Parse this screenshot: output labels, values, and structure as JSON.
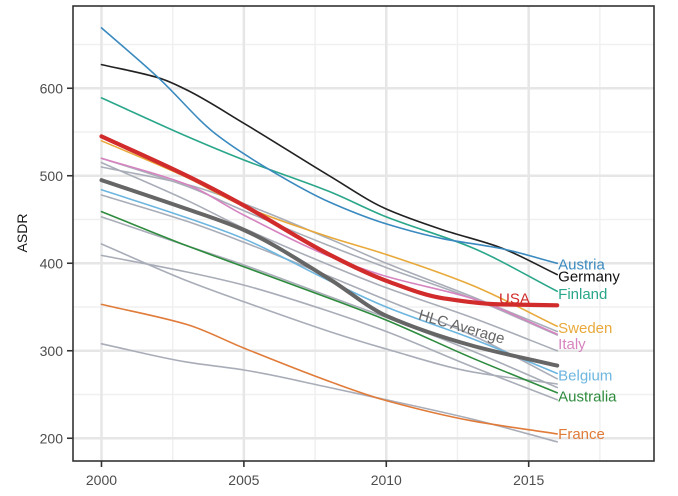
{
  "chart_data": {
    "type": "line",
    "title": "",
    "xlabel": "",
    "ylabel": "ASDR",
    "xlim": [
      1999.0,
      2019.4
    ],
    "ylim": [
      174,
      694
    ],
    "grid": true,
    "x_ticks": [
      2000,
      2005,
      2010,
      2015
    ],
    "y_ticks": [
      200,
      300,
      400,
      500,
      600
    ],
    "x_tick_labels": [
      "2000",
      "2005",
      "2010",
      "2015"
    ],
    "y_tick_labels": [
      "200",
      "300",
      "400",
      "500",
      "600"
    ],
    "legend": "direct-labels-right",
    "series": [
      {
        "name": "",
        "color": "#a9adb8",
        "width": 1.6,
        "labeled": false,
        "x": [
          2000,
          2003,
          2005,
          2008,
          2010,
          2013,
          2016
        ],
        "y": [
          520,
          488,
          460,
          420,
          395,
          360,
          318
        ]
      },
      {
        "name": "",
        "color": "#a9adb8",
        "width": 1.6,
        "labeled": false,
        "x": [
          2000,
          2003,
          2005,
          2008,
          2010,
          2013,
          2016
        ],
        "y": [
          515,
          472,
          440,
          398,
          372,
          338,
          300
        ]
      },
      {
        "name": "",
        "color": "#a9adb8",
        "width": 1.6,
        "labeled": false,
        "x": [
          2000,
          2003,
          2005,
          2008,
          2010,
          2013,
          2016
        ],
        "y": [
          510,
          490,
          468,
          428,
          400,
          362,
          322
        ]
      },
      {
        "name": "",
        "color": "#a9adb8",
        "width": 1.6,
        "labeled": false,
        "x": [
          2000,
          2003,
          2005,
          2008,
          2010,
          2013,
          2016
        ],
        "y": [
          478,
          448,
          424,
          385,
          358,
          318,
          268
        ]
      },
      {
        "name": "",
        "color": "#a9adb8",
        "width": 1.6,
        "labeled": false,
        "x": [
          2000,
          2003,
          2005,
          2008,
          2010,
          2013,
          2016
        ],
        "y": [
          453,
          420,
          398,
          362,
          338,
          300,
          258
        ]
      },
      {
        "name": "",
        "color": "#a9adb8",
        "width": 1.6,
        "labeled": false,
        "x": [
          2000,
          2003,
          2005,
          2008,
          2010,
          2013,
          2016
        ],
        "y": [
          422,
          380,
          356,
          322,
          302,
          276,
          262
        ]
      },
      {
        "name": "",
        "color": "#a9adb8",
        "width": 1.6,
        "labeled": false,
        "x": [
          2000,
          2003,
          2005,
          2008,
          2010,
          2013,
          2016
        ],
        "y": [
          409,
          390,
          375,
          345,
          322,
          282,
          244
        ]
      },
      {
        "name": "",
        "color": "#a9adb8",
        "width": 1.6,
        "labeled": false,
        "x": [
          2000,
          2003,
          2005,
          2008,
          2010,
          2013,
          2016
        ],
        "y": [
          308,
          287,
          278,
          258,
          244,
          222,
          196
        ]
      },
      {
        "name": "France",
        "color": "#e07b39",
        "width": 1.6,
        "labeled": true,
        "x": [
          2000,
          2003,
          2005,
          2008,
          2010,
          2013,
          2016
        ],
        "y": [
          353,
          330,
          303,
          265,
          243,
          220,
          205
        ]
      },
      {
        "name": "Australia",
        "color": "#2e8b3e",
        "width": 1.6,
        "labeled": true,
        "x": [
          2000,
          2003,
          2005,
          2008,
          2010,
          2013,
          2016
        ],
        "y": [
          459,
          420,
          396,
          360,
          335,
          292,
          252
        ]
      },
      {
        "name": "Belgium",
        "color": "#6db6e0",
        "width": 1.6,
        "labeled": true,
        "x": [
          2000,
          2003,
          2005,
          2008,
          2010,
          2013,
          2016
        ],
        "y": [
          484,
          452,
          428,
          380,
          350,
          314,
          274
        ]
      },
      {
        "name": "Italy",
        "color": "#d684c0",
        "width": 1.6,
        "labeled": true,
        "x": [
          2000,
          2003,
          2005,
          2008,
          2010,
          2013,
          2016
        ],
        "y": [
          520,
          490,
          455,
          408,
          385,
          360,
          319
        ]
      },
      {
        "name": "Sweden",
        "color": "#e8a93a",
        "width": 1.6,
        "labeled": true,
        "x": [
          2000,
          2003,
          2005,
          2008,
          2010,
          2013,
          2016
        ],
        "y": [
          540,
          498,
          465,
          430,
          410,
          375,
          328
        ]
      },
      {
        "name": "Finland",
        "color": "#2aa68a",
        "width": 1.6,
        "labeled": true,
        "x": [
          2000,
          2003,
          2005,
          2008,
          2010,
          2013,
          2016
        ],
        "y": [
          589,
          545,
          518,
          482,
          453,
          418,
          368
        ]
      },
      {
        "name": "Germany",
        "color": "#222222",
        "width": 1.6,
        "labeled": true,
        "x": [
          2000,
          2002,
          2003,
          2005,
          2008,
          2010,
          2012,
          2014,
          2016
        ],
        "y": [
          627,
          612,
          598,
          560,
          500,
          462,
          438,
          418,
          387
        ]
      },
      {
        "name": "Austria",
        "color": "#3a8abf",
        "width": 1.6,
        "labeled": true,
        "x": [
          2000,
          2002,
          2004,
          2006,
          2008,
          2010,
          2012,
          2014,
          2016
        ],
        "y": [
          669,
          612,
          548,
          505,
          470,
          445,
          428,
          417,
          400
        ]
      },
      {
        "name": "HLC Average",
        "color": "#666666",
        "width": 4,
        "labeled": true,
        "x": [
          2000,
          2003,
          2005,
          2008,
          2010,
          2013,
          2016
        ],
        "y": [
          495,
          462,
          438,
          382,
          340,
          306,
          283
        ]
      },
      {
        "name": "USA",
        "color": "#d12b2b",
        "width": 4.2,
        "labeled": true,
        "x": [
          2000,
          2003,
          2005,
          2008,
          2010,
          2012,
          2014,
          2016
        ],
        "y": [
          545,
          500,
          466,
          410,
          380,
          360,
          353,
          352
        ]
      }
    ],
    "annotations": [
      {
        "text": "Austria",
        "color": "#3a8abf",
        "x": 2016,
        "y": 400
      },
      {
        "text": "Germany",
        "color": "#111111",
        "x": 2016,
        "y": 386
      },
      {
        "text": "USA",
        "color": "#d12b2b",
        "x": 2014.5,
        "y": 361
      },
      {
        "text": "Finland",
        "color": "#2aa68a",
        "x": 2016,
        "y": 366
      },
      {
        "text": "Sweden",
        "color": "#e8a93a",
        "x": 2016,
        "y": 327
      },
      {
        "text": "HLC Average",
        "color": "#666666",
        "x": 2012.6,
        "y": 322
      },
      {
        "text": "Italy",
        "color": "#d684c0",
        "x": 2016,
        "y": 309
      },
      {
        "text": "Belgium",
        "color": "#6db6e0",
        "x": 2016,
        "y": 273
      },
      {
        "text": "Australia",
        "color": "#2e8b3e",
        "x": 2016,
        "y": 249
      },
      {
        "text": "France",
        "color": "#e07b39",
        "x": 2016,
        "y": 206
      }
    ]
  }
}
